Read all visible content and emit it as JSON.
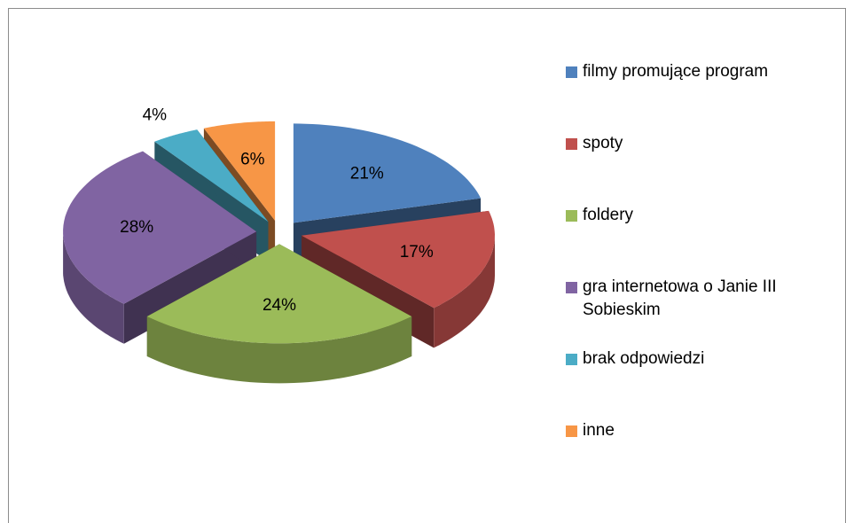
{
  "chart_data": {
    "type": "pie3d",
    "categories": [
      "filmy promujące program",
      "spoty",
      "foldery",
      "gra internetowa o Janie III Sobieskim",
      "brak odpowiedzi",
      "inne"
    ],
    "values": [
      21,
      17,
      24,
      28,
      4,
      6
    ],
    "value_labels": [
      "21%",
      "17%",
      "24%",
      "28%",
      "4%",
      "6%"
    ],
    "colors": [
      "#4f81bd",
      "#c0504d",
      "#9bbb59",
      "#8064a2",
      "#4bacc6",
      "#f79646"
    ],
    "legend": "right"
  }
}
